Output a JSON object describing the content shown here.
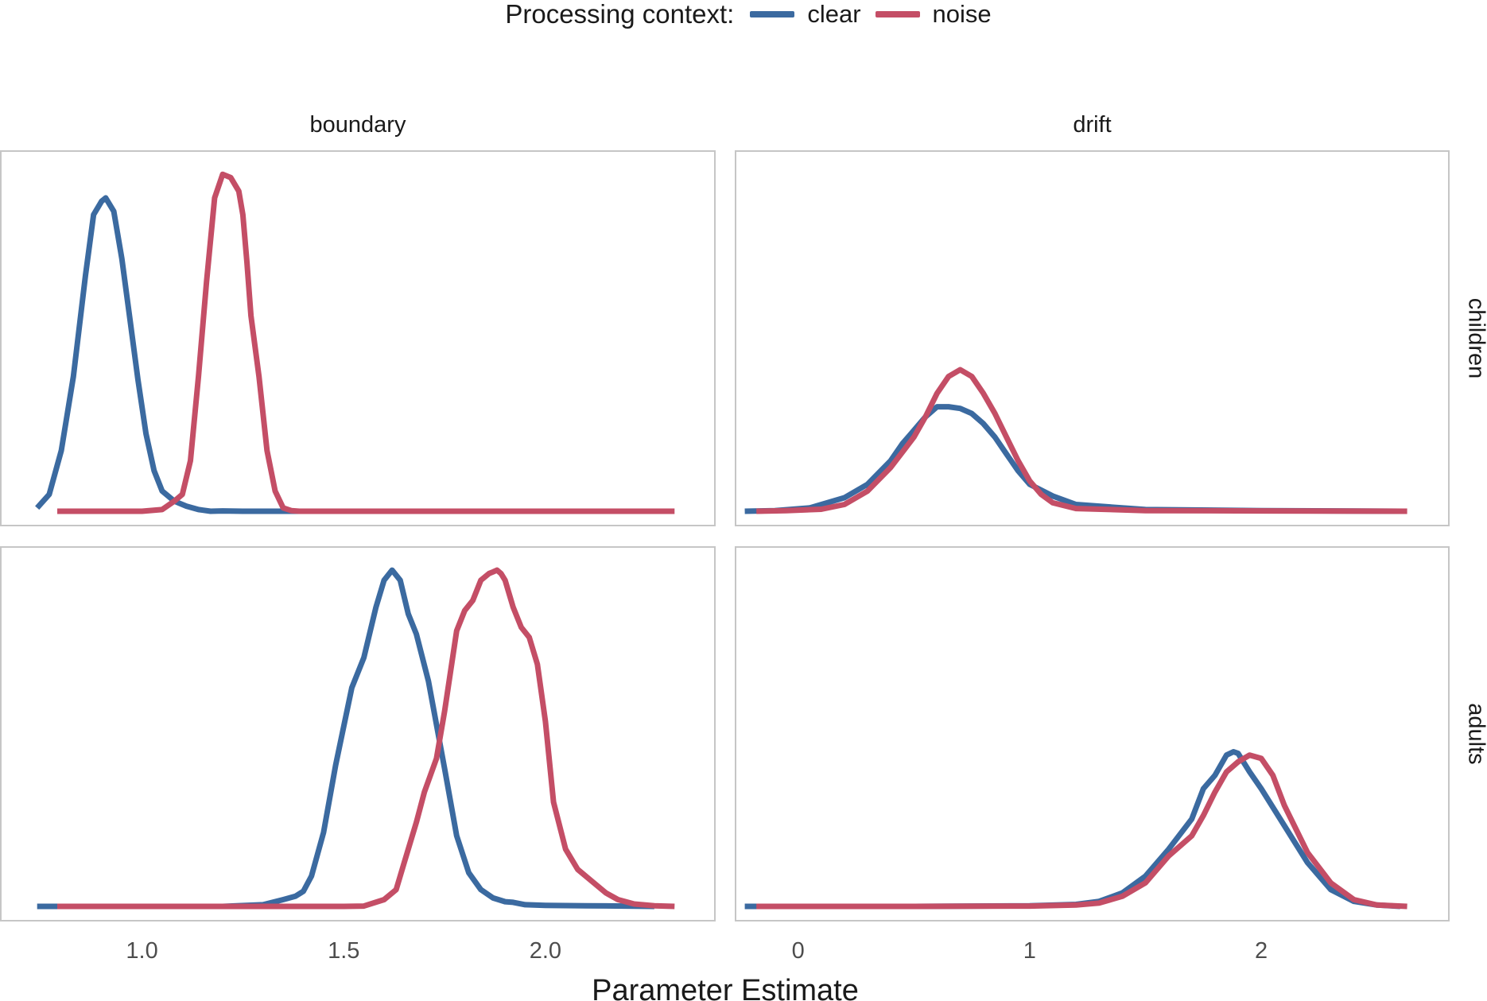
{
  "legend": {
    "title": "Processing context:",
    "items": [
      {
        "label": "clear",
        "color": "#3b6aa0"
      },
      {
        "label": "noise",
        "color": "#c44e66"
      }
    ]
  },
  "xlabel": "Parameter Estimate",
  "facet_columns": [
    "boundary",
    "drift"
  ],
  "facet_rows": [
    "children",
    "adults"
  ],
  "chart_data": {
    "type": "line",
    "subtype": "density",
    "xlabel": "Parameter Estimate",
    "facets": [
      {
        "row": "children",
        "column": "boundary",
        "xlim": [
          0.65,
          2.42
        ],
        "ylim": [
          0,
          1.05
        ],
        "series": [
          {
            "name": "clear",
            "color": "#3b6aa0",
            "x": [
              0.74,
              0.77,
              0.8,
              0.83,
              0.86,
              0.88,
              0.9,
              0.91,
              0.93,
              0.95,
              0.97,
              0.99,
              1.01,
              1.03,
              1.05,
              1.08,
              1.11,
              1.14,
              1.17,
              1.2,
              1.25,
              1.3,
              1.4,
              1.6,
              1.8,
              2.0,
              2.2,
              2.27
            ],
            "y": [
              0.01,
              0.05,
              0.18,
              0.4,
              0.7,
              0.88,
              0.92,
              0.93,
              0.89,
              0.75,
              0.57,
              0.39,
              0.23,
              0.12,
              0.06,
              0.03,
              0.015,
              0.005,
              0.0,
              0.001,
              0.0,
              0.0,
              0.0,
              0.0,
              0.0,
              0.0,
              0.0,
              0.0
            ]
          },
          {
            "name": "noise",
            "color": "#c44e66",
            "x": [
              0.79,
              0.9,
              1.0,
              1.05,
              1.08,
              1.1,
              1.12,
              1.14,
              1.16,
              1.18,
              1.2,
              1.22,
              1.24,
              1.25,
              1.26,
              1.27,
              1.29,
              1.31,
              1.33,
              1.35,
              1.37,
              1.39,
              1.41,
              1.5,
              1.7,
              2.0,
              2.3,
              2.32
            ],
            "y": [
              0.0,
              0.0,
              0.0,
              0.005,
              0.03,
              0.05,
              0.15,
              0.4,
              0.68,
              0.93,
              1.0,
              0.99,
              0.95,
              0.88,
              0.74,
              0.58,
              0.4,
              0.18,
              0.06,
              0.01,
              0.002,
              0.0,
              0.0,
              0.0,
              0.0,
              0.0,
              0.0,
              0.0
            ]
          }
        ]
      },
      {
        "row": "children",
        "column": "drift",
        "xlim": [
          -0.27,
          2.81
        ],
        "ylim": [
          0,
          1.05
        ],
        "series": [
          {
            "name": "clear",
            "color": "#3b6aa0",
            "x": [
              -0.23,
              -0.1,
              0.05,
              0.2,
              0.3,
              0.4,
              0.45,
              0.5,
              0.55,
              0.6,
              0.65,
              0.7,
              0.75,
              0.8,
              0.85,
              0.9,
              0.95,
              1.0,
              1.1,
              1.2,
              1.5,
              2.0,
              2.6
            ],
            "y": [
              0.0,
              0.002,
              0.01,
              0.04,
              0.08,
              0.15,
              0.2,
              0.24,
              0.28,
              0.31,
              0.31,
              0.305,
              0.29,
              0.26,
              0.22,
              0.17,
              0.12,
              0.08,
              0.045,
              0.02,
              0.005,
              0.002,
              0.0
            ]
          },
          {
            "name": "noise",
            "color": "#c44e66",
            "x": [
              -0.18,
              -0.05,
              0.1,
              0.2,
              0.3,
              0.4,
              0.5,
              0.55,
              0.6,
              0.65,
              0.7,
              0.75,
              0.8,
              0.85,
              0.9,
              0.95,
              1.0,
              1.05,
              1.1,
              1.2,
              1.5,
              2.0,
              2.63
            ],
            "y": [
              0.0,
              0.002,
              0.006,
              0.02,
              0.06,
              0.13,
              0.22,
              0.28,
              0.35,
              0.4,
              0.42,
              0.4,
              0.35,
              0.29,
              0.22,
              0.15,
              0.09,
              0.05,
              0.025,
              0.008,
              0.002,
              0.001,
              0.0
            ]
          }
        ]
      },
      {
        "row": "adults",
        "column": "boundary",
        "xlim": [
          0.65,
          2.42
        ],
        "ylim": [
          0,
          1.05
        ],
        "series": [
          {
            "name": "clear",
            "color": "#3b6aa0",
            "x": [
              0.74,
              1.0,
              1.2,
              1.3,
              1.35,
              1.38,
              1.4,
              1.42,
              1.45,
              1.48,
              1.52,
              1.55,
              1.58,
              1.6,
              1.62,
              1.64,
              1.66,
              1.68,
              1.71,
              1.75,
              1.78,
              1.81,
              1.84,
              1.87,
              1.9,
              1.92,
              1.95,
              2.0,
              2.1,
              2.2,
              2.27
            ],
            "y": [
              0.0,
              0.0,
              0.0,
              0.005,
              0.02,
              0.03,
              0.045,
              0.09,
              0.22,
              0.42,
              0.65,
              0.74,
              0.89,
              0.97,
              1.0,
              0.97,
              0.87,
              0.81,
              0.67,
              0.41,
              0.21,
              0.1,
              0.05,
              0.025,
              0.014,
              0.012,
              0.005,
              0.003,
              0.002,
              0.001,
              0.0
            ]
          },
          {
            "name": "noise",
            "color": "#c44e66",
            "x": [
              0.79,
              1.2,
              1.5,
              1.55,
              1.6,
              1.63,
              1.65,
              1.68,
              1.7,
              1.73,
              1.75,
              1.78,
              1.8,
              1.82,
              1.84,
              1.86,
              1.87,
              1.88,
              1.89,
              1.9,
              1.92,
              1.94,
              1.96,
              1.98,
              2.0,
              2.02,
              2.05,
              2.08,
              2.12,
              2.15,
              2.18,
              2.22,
              2.27,
              2.32
            ],
            "y": [
              0.0,
              0.0,
              0.0,
              0.001,
              0.02,
              0.05,
              0.13,
              0.25,
              0.34,
              0.44,
              0.58,
              0.82,
              0.88,
              0.91,
              0.97,
              0.99,
              0.995,
              1.0,
              0.99,
              0.97,
              0.89,
              0.83,
              0.8,
              0.72,
              0.55,
              0.31,
              0.17,
              0.11,
              0.07,
              0.04,
              0.02,
              0.007,
              0.002,
              0.0
            ]
          }
        ]
      },
      {
        "row": "adults",
        "column": "drift",
        "xlim": [
          -0.27,
          2.81
        ],
        "ylim": [
          0,
          1.05
        ],
        "series": [
          {
            "name": "clear",
            "color": "#3b6aa0",
            "x": [
              -0.23,
              0.5,
              1.0,
              1.2,
              1.3,
              1.4,
              1.5,
              1.6,
              1.7,
              1.75,
              1.8,
              1.85,
              1.88,
              1.9,
              1.95,
              2.0,
              2.1,
              2.2,
              2.3,
              2.4,
              2.5,
              2.6
            ],
            "y": [
              0.0,
              0.0,
              0.002,
              0.006,
              0.015,
              0.04,
              0.09,
              0.17,
              0.26,
              0.35,
              0.39,
              0.45,
              0.46,
              0.455,
              0.4,
              0.35,
              0.24,
              0.13,
              0.05,
              0.015,
              0.004,
              0.0
            ]
          },
          {
            "name": "noise",
            "color": "#c44e66",
            "x": [
              -0.18,
              0.5,
              1.0,
              1.2,
              1.3,
              1.4,
              1.5,
              1.6,
              1.7,
              1.75,
              1.8,
              1.85,
              1.9,
              1.95,
              2.0,
              2.05,
              2.1,
              2.2,
              2.3,
              2.4,
              2.5,
              2.63
            ],
            "y": [
              0.0,
              0.0,
              0.001,
              0.004,
              0.01,
              0.03,
              0.07,
              0.15,
              0.21,
              0.27,
              0.34,
              0.4,
              0.43,
              0.45,
              0.44,
              0.39,
              0.3,
              0.16,
              0.07,
              0.02,
              0.004,
              0.0
            ]
          }
        ]
      }
    ]
  },
  "x_ticks": {
    "boundary": {
      "labels": [
        "1.0",
        "1.5",
        "2.0"
      ],
      "values": [
        1.0,
        1.5,
        2.0
      ]
    },
    "drift": {
      "labels": [
        "0",
        "1",
        "2"
      ],
      "values": [
        0,
        1,
        2
      ]
    }
  }
}
